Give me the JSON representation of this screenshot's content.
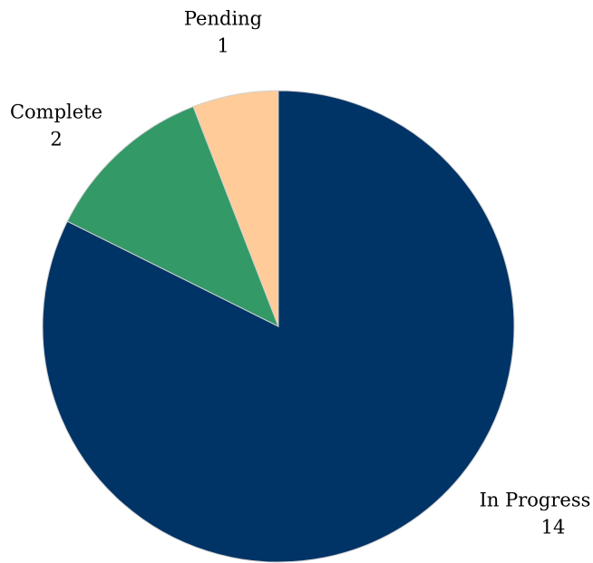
{
  "chart_data": {
    "type": "pie",
    "categories": [
      "In Progress",
      "Complete",
      "Pending"
    ],
    "values": [
      14,
      2,
      1
    ],
    "colors": [
      "#003366",
      "#339966",
      "#ffcc99"
    ]
  }
}
